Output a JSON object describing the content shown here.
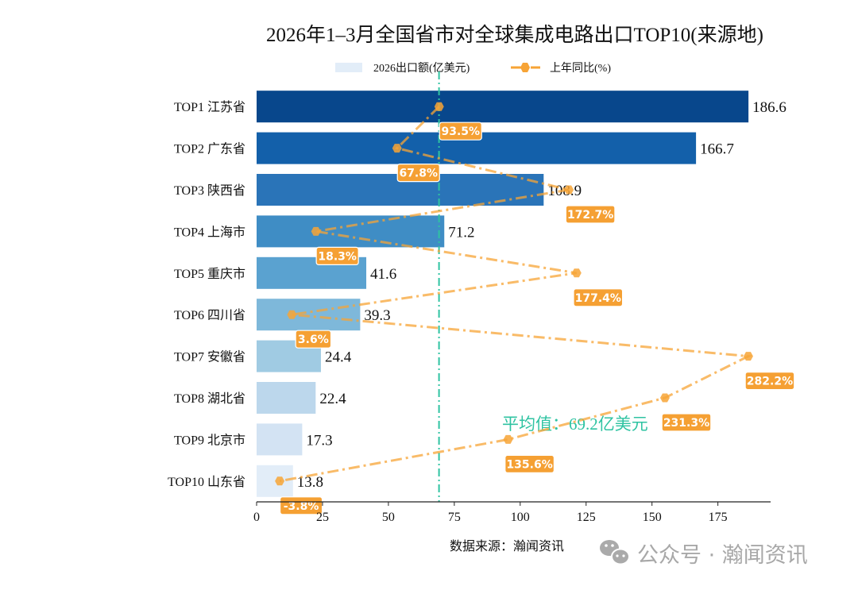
{
  "chart_data": {
    "type": "bar",
    "orientation": "horizontal",
    "title": "2026年1–3月全国省市对全球集成电路出口TOP10(来源地)",
    "categories": [
      "TOP1 江苏省",
      "TOP2 广东省",
      "TOP3 陕西省",
      "TOP4 上海市",
      "TOP5 重庆市",
      "TOP6 四川省",
      "TOP7 安徽省",
      "TOP8 湖北省",
      "TOP9 北京市",
      "TOP10 山东省"
    ],
    "series": [
      {
        "name": "2026出口额(亿美元)",
        "type": "bar",
        "values": [
          186.6,
          166.7,
          108.9,
          71.2,
          41.6,
          39.3,
          24.4,
          22.4,
          17.3,
          13.8
        ],
        "colors": [
          "#08478c",
          "#1360aa",
          "#2a74b8",
          "#3f8dc5",
          "#5aa2d0",
          "#7eb8da",
          "#a0cbe3",
          "#bcd7ec",
          "#d3e3f3",
          "#e2edf8"
        ]
      },
      {
        "name": "上年同比(%)",
        "type": "line",
        "values": [
          93.5,
          67.8,
          172.7,
          18.3,
          177.4,
          3.6,
          282.2,
          231.3,
          135.6,
          -3.8
        ],
        "labels": [
          "93.5%",
          "67.8%",
          "172.7%",
          "18.3%",
          "177.4%",
          "3.6%",
          "282.2%",
          "231.3%",
          "135.6%",
          "-3.8%"
        ],
        "color": "#f7a436",
        "axis_range": [
          -17.9,
          295.8
        ]
      }
    ],
    "bar_labels": [
      "186.6",
      "166.7",
      "108.9",
      "71.2",
      "41.6",
      "39.3",
      "24.4",
      "22.4",
      "17.3",
      "13.8"
    ],
    "xlim": [
      0,
      195
    ],
    "xticks": [
      0,
      25,
      50,
      75,
      100,
      125,
      150,
      175
    ],
    "xtick_labels": [
      "0",
      "25",
      "50",
      "75",
      "100",
      "125",
      "150",
      "175"
    ],
    "average": {
      "value": 69.2,
      "label": "平均值：69.2亿美元",
      "color": "#2fc3a2"
    },
    "legend": {
      "placement": "top-center"
    },
    "grid": false
  },
  "footer": {
    "source": "数据来源：瀚闻资讯",
    "watermark": "公众号 · 瀚闻资讯"
  }
}
